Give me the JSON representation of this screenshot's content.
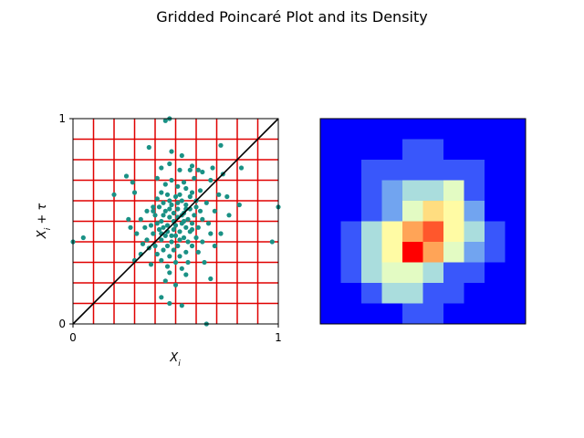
{
  "chart_data": [
    {
      "type": "scatter",
      "title": "Gridded Poincaré Plot and its Density",
      "xlabel": "X_i",
      "ylabel": "X_i + τ",
      "xlim": [
        0,
        1
      ],
      "ylim": [
        0,
        1
      ],
      "xticks": [
        "0",
        "1"
      ],
      "yticks": [
        "0",
        "1"
      ],
      "grid": {
        "visible": true,
        "color": "#e00000",
        "divisions": 10
      },
      "identity_line": {
        "visible": true,
        "color": "#000000"
      },
      "point_color": "#1a9185",
      "points": [
        [
          0.47,
          1.0
        ],
        [
          0.45,
          0.99
        ],
        [
          0.72,
          0.87
        ],
        [
          0.37,
          0.86
        ],
        [
          0.48,
          0.84
        ],
        [
          0.53,
          0.82
        ],
        [
          0.47,
          0.78
        ],
        [
          0.58,
          0.77
        ],
        [
          0.43,
          0.76
        ],
        [
          0.68,
          0.76
        ],
        [
          0.82,
          0.76
        ],
        [
          0.52,
          0.75
        ],
        [
          0.57,
          0.75
        ],
        [
          0.61,
          0.75
        ],
        [
          0.63,
          0.74
        ],
        [
          0.73,
          0.73
        ],
        [
          0.26,
          0.72
        ],
        [
          0.41,
          0.71
        ],
        [
          0.59,
          0.71
        ],
        [
          0.67,
          0.7
        ],
        [
          0.29,
          0.69
        ],
        [
          0.48,
          0.7
        ],
        [
          0.54,
          0.69
        ],
        [
          0.45,
          0.68
        ],
        [
          0.51,
          0.67
        ],
        [
          0.55,
          0.66
        ],
        [
          0.62,
          0.65
        ],
        [
          0.43,
          0.64
        ],
        [
          0.58,
          0.64
        ],
        [
          0.3,
          0.64
        ],
        [
          0.2,
          0.63
        ],
        [
          0.46,
          0.63
        ],
        [
          0.5,
          0.62
        ],
        [
          0.57,
          0.62
        ],
        [
          0.71,
          0.63
        ],
        [
          0.75,
          0.62
        ],
        [
          0.41,
          0.61
        ],
        [
          0.53,
          0.6
        ],
        [
          0.6,
          0.6
        ],
        [
          0.65,
          0.59
        ],
        [
          0.44,
          0.59
        ],
        [
          0.48,
          0.58
        ],
        [
          0.55,
          0.58
        ],
        [
          0.81,
          0.58
        ],
        [
          0.39,
          0.57
        ],
        [
          0.51,
          0.56
        ],
        [
          0.57,
          0.56
        ],
        [
          0.62,
          0.55
        ],
        [
          0.69,
          0.55
        ],
        [
          0.36,
          0.55
        ],
        [
          0.45,
          0.55
        ],
        [
          0.54,
          0.54
        ],
        [
          0.59,
          0.53
        ],
        [
          0.76,
          0.53
        ],
        [
          0.4,
          0.53
        ],
        [
          0.47,
          0.52
        ],
        [
          0.51,
          0.52
        ],
        [
          0.56,
          0.51
        ],
        [
          0.63,
          0.51
        ],
        [
          0.27,
          0.51
        ],
        [
          0.33,
          0.51
        ],
        [
          0.43,
          0.5
        ],
        [
          0.49,
          0.5
        ],
        [
          0.53,
          0.49
        ],
        [
          0.58,
          0.49
        ],
        [
          0.66,
          0.49
        ],
        [
          0.38,
          0.48
        ],
        [
          0.46,
          0.48
        ],
        [
          0.55,
          0.47
        ],
        [
          0.61,
          0.47
        ],
        [
          0.28,
          0.47
        ],
        [
          0.35,
          0.47
        ],
        [
          0.42,
          0.46
        ],
        [
          0.49,
          0.46
        ],
        [
          0.52,
          0.45
        ],
        [
          0.57,
          0.45
        ],
        [
          0.67,
          0.44
        ],
        [
          0.72,
          0.44
        ],
        [
          0.31,
          0.44
        ],
        [
          0.39,
          0.44
        ],
        [
          0.45,
          0.43
        ],
        [
          0.5,
          0.43
        ],
        [
          0.54,
          0.42
        ],
        [
          0.6,
          0.42
        ],
        [
          0.36,
          0.41
        ],
        [
          0.43,
          0.41
        ],
        [
          0.48,
          0.4
        ],
        [
          0.56,
          0.4
        ],
        [
          0.63,
          0.4
        ],
        [
          0.34,
          0.39
        ],
        [
          0.4,
          0.38
        ],
        [
          0.46,
          0.38
        ],
        [
          0.51,
          0.38
        ],
        [
          0.58,
          0.38
        ],
        [
          0.69,
          0.38
        ],
        [
          0.37,
          0.37
        ],
        [
          0.44,
          0.36
        ],
        [
          0.49,
          0.36
        ],
        [
          0.55,
          0.35
        ],
        [
          0.61,
          0.35
        ],
        [
          0.33,
          0.34
        ],
        [
          0.41,
          0.34
        ],
        [
          0.47,
          0.33
        ],
        [
          0.52,
          0.33
        ],
        [
          0.3,
          0.31
        ],
        [
          0.43,
          0.31
        ],
        [
          0.5,
          0.3
        ],
        [
          0.56,
          0.3
        ],
        [
          0.64,
          0.3
        ],
        [
          0.38,
          0.29
        ],
        [
          0.46,
          0.28
        ],
        [
          0.53,
          0.27
        ],
        [
          0.47,
          0.25
        ],
        [
          0.55,
          0.24
        ],
        [
          0.67,
          0.22
        ],
        [
          0.45,
          0.21
        ],
        [
          0.5,
          0.19
        ],
        [
          0.43,
          0.13
        ],
        [
          0.47,
          0.1
        ],
        [
          0.53,
          0.09
        ],
        [
          0.65,
          0.0
        ],
        [
          0.0,
          0.4
        ],
        [
          0.05,
          0.42
        ],
        [
          1.0,
          0.57
        ],
        [
          0.97,
          0.4
        ],
        [
          0.44,
          0.53
        ],
        [
          0.47,
          0.56
        ],
        [
          0.51,
          0.59
        ],
        [
          0.53,
          0.53
        ],
        [
          0.49,
          0.54
        ],
        [
          0.42,
          0.57
        ],
        [
          0.55,
          0.56
        ],
        [
          0.5,
          0.48
        ],
        [
          0.46,
          0.45
        ],
        [
          0.52,
          0.41
        ],
        [
          0.41,
          0.49
        ],
        [
          0.58,
          0.46
        ],
        [
          0.44,
          0.47
        ],
        [
          0.48,
          0.43
        ],
        [
          0.54,
          0.5
        ],
        [
          0.47,
          0.6
        ],
        [
          0.52,
          0.63
        ],
        [
          0.39,
          0.55
        ],
        [
          0.6,
          0.57
        ],
        [
          0.43,
          0.44
        ]
      ]
    },
    {
      "type": "heatmap",
      "colormap": "rainbow",
      "rows": 10,
      "cols": 10,
      "values": [
        [
          0,
          0,
          0,
          0,
          0,
          0,
          0,
          0,
          0,
          0
        ],
        [
          0,
          0,
          0,
          0,
          1,
          1,
          0,
          0,
          0,
          0
        ],
        [
          0,
          0,
          1,
          1,
          1,
          1,
          1,
          1,
          0,
          0
        ],
        [
          0,
          0,
          1,
          2,
          3,
          3,
          4,
          1,
          0,
          0
        ],
        [
          0,
          0,
          1,
          2,
          4,
          6,
          5,
          2,
          0,
          0
        ],
        [
          0,
          1,
          3,
          5,
          7,
          8,
          5,
          3,
          1,
          0
        ],
        [
          0,
          1,
          3,
          5,
          9,
          7,
          4,
          2,
          1,
          0
        ],
        [
          0,
          1,
          3,
          4,
          4,
          3,
          1,
          1,
          0,
          0
        ],
        [
          0,
          0,
          1,
          3,
          3,
          1,
          1,
          0,
          0,
          0
        ],
        [
          0,
          0,
          0,
          0,
          1,
          1,
          0,
          0,
          0,
          0
        ]
      ]
    }
  ]
}
